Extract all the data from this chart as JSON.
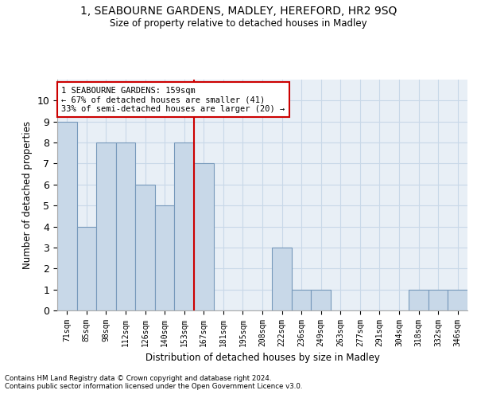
{
  "title_line1": "1, SEABOURNE GARDENS, MADLEY, HEREFORD, HR2 9SQ",
  "title_line2": "Size of property relative to detached houses in Madley",
  "xlabel": "Distribution of detached houses by size in Madley",
  "ylabel": "Number of detached properties",
  "categories": [
    "71sqm",
    "85sqm",
    "98sqm",
    "112sqm",
    "126sqm",
    "140sqm",
    "153sqm",
    "167sqm",
    "181sqm",
    "195sqm",
    "208sqm",
    "222sqm",
    "236sqm",
    "249sqm",
    "263sqm",
    "277sqm",
    "291sqm",
    "304sqm",
    "318sqm",
    "332sqm",
    "346sqm"
  ],
  "values": [
    9,
    4,
    8,
    8,
    6,
    5,
    8,
    7,
    0,
    0,
    0,
    3,
    1,
    1,
    0,
    0,
    0,
    0,
    1,
    1,
    1
  ],
  "bar_color": "#c8d8e8",
  "bar_edge_color": "#7799bb",
  "grid_color": "#c8d8e8",
  "background_color": "#e8eff6",
  "vline_x": 6.5,
  "vline_color": "#cc0000",
  "annotation_text": "1 SEABOURNE GARDENS: 159sqm\n← 67% of detached houses are smaller (41)\n33% of semi-detached houses are larger (20) →",
  "annotation_box_color": "#ffffff",
  "annotation_box_edge": "#cc0000",
  "ylim": [
    0,
    11
  ],
  "yticks": [
    0,
    1,
    2,
    3,
    4,
    5,
    6,
    7,
    8,
    9,
    10
  ],
  "footnote1": "Contains HM Land Registry data © Crown copyright and database right 2024.",
  "footnote2": "Contains public sector information licensed under the Open Government Licence v3.0."
}
